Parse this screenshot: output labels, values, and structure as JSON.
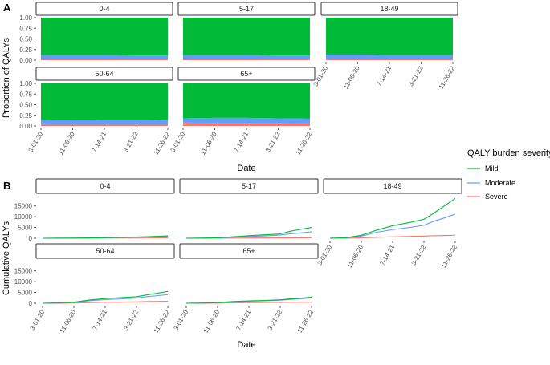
{
  "colors": {
    "mild": "#00ba38",
    "moderate": "#619cff",
    "severe": "#f8766d"
  },
  "legend": {
    "title": "QALY burden severity",
    "items": [
      {
        "key": "mild",
        "label": "Mild"
      },
      {
        "key": "moderate",
        "label": "Moderate"
      },
      {
        "key": "severe",
        "label": "Severe"
      }
    ]
  },
  "panel_a": {
    "letter": "A",
    "xlabel": "Date",
    "ylabel": "Proportion of QALYs"
  },
  "panel_b": {
    "letter": "B",
    "xlabel": "Date",
    "ylabel": "Cumulative QALYs"
  },
  "chart_data": [
    {
      "type": "area",
      "panel": "A",
      "facets": [
        "0-4",
        "5-17",
        "18-49",
        "50-64",
        "65+"
      ],
      "x_ticks": [
        "3-01-20",
        "11-06-20",
        "7-14-21",
        "3-21-22",
        "11-26-22"
      ],
      "xlabel": "Date",
      "ylabel": "Proportion of QALYs",
      "y_ticks": [
        "0.00",
        "0.25",
        "0.50",
        "0.75",
        "1.00"
      ],
      "ylim": [
        0,
        1
      ],
      "stacked": true,
      "x": [
        0,
        1,
        2,
        3,
        4
      ],
      "series_by_facet": {
        "0-4": {
          "severe": [
            0.02,
            0.02,
            0.02,
            0.02,
            0.02
          ],
          "moderate": [
            0.1,
            0.1,
            0.1,
            0.09,
            0.09
          ]
        },
        "5-17": {
          "severe": [
            0.02,
            0.02,
            0.02,
            0.02,
            0.02
          ],
          "moderate": [
            0.1,
            0.1,
            0.1,
            0.09,
            0.09
          ]
        },
        "18-49": {
          "severe": [
            0.03,
            0.03,
            0.03,
            0.03,
            0.03
          ],
          "moderate": [
            0.1,
            0.1,
            0.09,
            0.09,
            0.09
          ]
        },
        "50-64": {
          "severe": [
            0.04,
            0.04,
            0.04,
            0.04,
            0.04
          ],
          "moderate": [
            0.1,
            0.11,
            0.1,
            0.1,
            0.09
          ]
        },
        "65+": {
          "severe": [
            0.08,
            0.07,
            0.07,
            0.07,
            0.06
          ],
          "moderate": [
            0.1,
            0.12,
            0.12,
            0.11,
            0.11
          ]
        }
      },
      "legend_position": "right"
    },
    {
      "type": "line",
      "panel": "B",
      "facets": [
        "0-4",
        "5-17",
        "18-49",
        "50-64",
        "65+"
      ],
      "x_ticks": [
        "3-01-20",
        "11-06-20",
        "7-14-21",
        "3-21-22",
        "11-26-22"
      ],
      "xlabel": "Date",
      "ylabel": "Cumulative QALYs",
      "y_ticks": [
        "0",
        "5000",
        "10000",
        "15000"
      ],
      "ylim": [
        0,
        19000
      ],
      "x": [
        0,
        0.5,
        1,
        1.5,
        2,
        2.5,
        3,
        3.3,
        3.6,
        4
      ],
      "series_by_facet": {
        "0-4": {
          "mild": [
            0,
            20,
            60,
            150,
            300,
            450,
            600,
            700,
            850,
            1100
          ],
          "moderate": [
            0,
            15,
            50,
            120,
            250,
            380,
            500,
            600,
            700,
            850
          ],
          "severe": [
            0,
            5,
            15,
            30,
            60,
            90,
            120,
            140,
            160,
            200
          ]
        },
        "5-17": {
          "mild": [
            0,
            60,
            200,
            700,
            1200,
            1600,
            2000,
            3200,
            4000,
            5000
          ],
          "moderate": [
            0,
            50,
            150,
            450,
            800,
            1100,
            1500,
            2000,
            2400,
            3000
          ],
          "severe": [
            0,
            10,
            30,
            60,
            100,
            130,
            160,
            180,
            200,
            230
          ]
        },
        "18-49": {
          "mild": [
            0,
            200,
            1400,
            3800,
            5800,
            7200,
            8800,
            11500,
            14500,
            18500
          ],
          "moderate": [
            0,
            160,
            1000,
            2800,
            4000,
            4900,
            6000,
            7800,
            9200,
            11200
          ],
          "severe": [
            0,
            40,
            200,
            450,
            650,
            800,
            1000,
            1150,
            1250,
            1400
          ]
        },
        "50-64": {
          "mild": [
            0,
            150,
            500,
            1500,
            2200,
            2600,
            3000,
            3800,
            4500,
            5500
          ],
          "moderate": [
            0,
            120,
            400,
            1200,
            1700,
            2000,
            2400,
            3000,
            3400,
            4000
          ],
          "severe": [
            0,
            30,
            100,
            300,
            450,
            550,
            650,
            750,
            800,
            900
          ]
        },
        "65+": {
          "mild": [
            0,
            80,
            300,
            800,
            1100,
            1300,
            1600,
            2000,
            2300,
            2800
          ],
          "moderate": [
            0,
            70,
            260,
            700,
            950,
            1150,
            1400,
            1750,
            2000,
            2500
          ],
          "severe": [
            0,
            20,
            80,
            200,
            280,
            330,
            400,
            450,
            500,
            550
          ]
        }
      },
      "legend_position": "right"
    }
  ]
}
